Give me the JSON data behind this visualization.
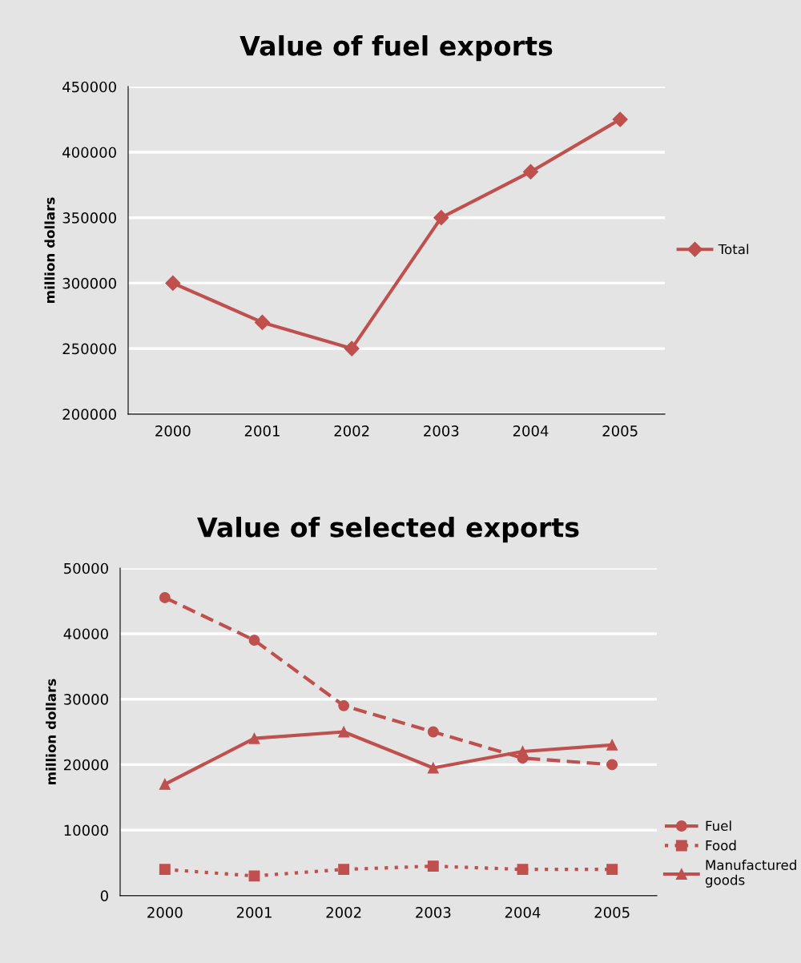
{
  "chart_data": [
    {
      "type": "line",
      "title": "Value of fuel exports",
      "ylabel": "million dollars",
      "categories": [
        "2000",
        "2001",
        "2002",
        "2003",
        "2004",
        "2005"
      ],
      "series": [
        {
          "name": "Total",
          "color": "#c0504d",
          "marker": "diamond",
          "line_style": "solid",
          "values": [
            300000,
            270000,
            250000,
            350000,
            385000,
            425000
          ]
        }
      ],
      "ylim": [
        200000,
        450000
      ],
      "yticks": [
        200000,
        250000,
        300000,
        350000,
        400000,
        450000
      ],
      "grid": "y",
      "legend": "right"
    },
    {
      "type": "line",
      "title": "Value of selected exports",
      "ylabel": "million dollars",
      "categories": [
        "2000",
        "2001",
        "2002",
        "2003",
        "2004",
        "2005"
      ],
      "series": [
        {
          "name": "Fuel",
          "color": "#c0504d",
          "marker": "circle",
          "line_style": "dashed",
          "values": [
            45500,
            39000,
            29000,
            25000,
            21000,
            20000
          ]
        },
        {
          "name": "Food",
          "color": "#c0504d",
          "marker": "square",
          "line_style": "dotted",
          "values": [
            4000,
            3000,
            4000,
            4500,
            4000,
            4000
          ]
        },
        {
          "name": "Manufactured\ngoods",
          "color": "#c0504d",
          "marker": "triangle",
          "line_style": "solid",
          "values": [
            17000,
            24000,
            25000,
            19500,
            22000,
            23000
          ]
        }
      ],
      "ylim": [
        0,
        50000
      ],
      "yticks": [
        0,
        10000,
        20000,
        30000,
        40000,
        50000
      ],
      "grid": "y",
      "legend": "bottom right"
    }
  ]
}
